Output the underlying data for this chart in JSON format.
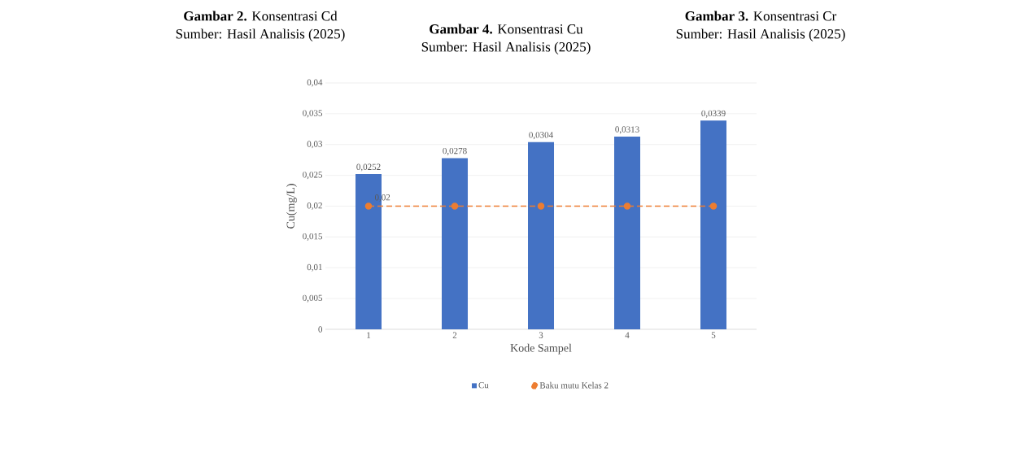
{
  "chart_data": {
    "type": "bar",
    "title": "**Gambar 4.** Konsentrasi Cu",
    "xlabel": "Kode Sampel",
    "ylabel": "Cu(mg/L)",
    "categories": [
      "1",
      "2",
      "3",
      "4",
      "5"
    ],
    "series": [
      {
        "name": "Cu",
        "color": "#4472c4",
        "values": [
          0.0252,
          0.0278,
          0.0304,
          0.0313,
          0.0339
        ],
        "value_labels": [
          "0,0252",
          "0,0278",
          "0,0304",
          "0,0313",
          "0,0339"
        ]
      },
      {
        "name": "Baku mutu Kelas 2",
        "type": "line",
        "color": "#ed7d31",
        "line_style": "dashed",
        "marker": "circle",
        "values": [
          0.02,
          0.02,
          0.02,
          0.02,
          0.02
        ],
        "value_labels": [
          "0,02",
          null,
          null,
          null,
          null
        ]
      }
    ],
    "ylim": [
      0,
      0.04
    ],
    "yticks": [
      {
        "value": 0,
        "label": "0"
      },
      {
        "value": 0.005,
        "label": "0,005"
      },
      {
        "value": 0.01,
        "label": "0,01"
      },
      {
        "value": 0.015,
        "label": "0,015"
      },
      {
        "value": 0.02,
        "label": "0,02"
      },
      {
        "value": 0.025,
        "label": "0,025"
      },
      {
        "value": 0.03,
        "label": "0,03"
      },
      {
        "value": 0.035,
        "label": "0,035"
      },
      {
        "value": 0.04,
        "label": "0,04"
      }
    ],
    "grid": "y",
    "legend": "bottom",
    "annotations": [
      "**Gambar 2.** Konsentrasi Cd",
      "Sumber: Hasil Analisis (2025)",
      "**Gambar 3.** Konsentrasi Cr",
      "Sumber: Hasil Analisis (2025)",
      "Sumber: Hasil Analisis (2025)"
    ]
  }
}
